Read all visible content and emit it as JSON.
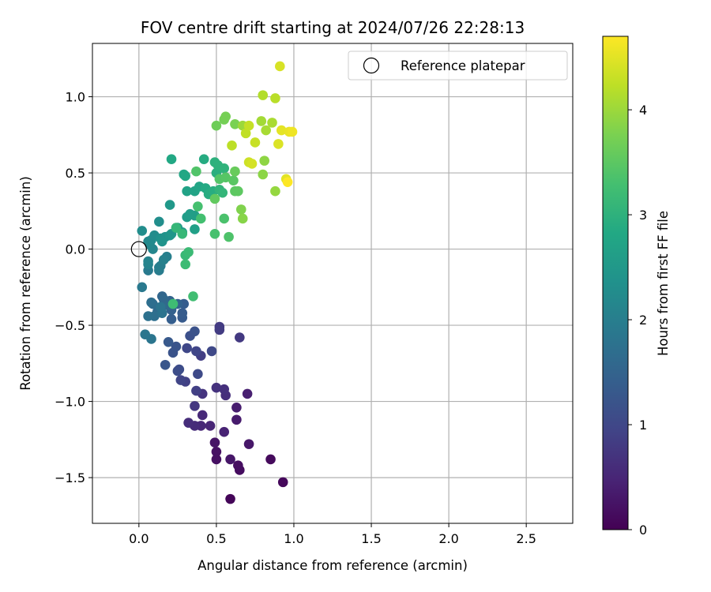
{
  "chart_data": {
    "type": "scatter",
    "title": "FOV centre drift starting at 2024/07/26 22:28:13",
    "xlabel": "Angular distance from reference (arcmin)",
    "ylabel": "Rotation from reference (arcmin)",
    "xlim": [
      -0.3,
      2.8
    ],
    "ylim": [
      -1.8,
      1.35
    ],
    "xticks": [
      0.0,
      0.5,
      1.0,
      1.5,
      2.0,
      2.5
    ],
    "xtick_labels": [
      "0.0",
      "0.5",
      "1.0",
      "1.5",
      "2.0",
      "2.5"
    ],
    "yticks": [
      -1.5,
      -1.0,
      -0.5,
      0.0,
      0.5,
      1.0
    ],
    "ytick_labels": [
      "−1.5",
      "−1.0",
      "−0.5",
      "0.0",
      "0.5",
      "1.0"
    ],
    "grid": true,
    "legend": {
      "placement": "upper-right",
      "entries": [
        "Reference platepar"
      ]
    },
    "reference_point": {
      "x": 0.0,
      "y": 0.0
    },
    "colorbar": {
      "label": "Hours from first FF file",
      "colormap": "viridis",
      "range": [
        0,
        4.7
      ],
      "ticks": [
        0,
        1,
        2,
        3,
        4
      ],
      "tick_labels": [
        "0",
        "1",
        "2",
        "3",
        "4"
      ]
    },
    "points": [
      {
        "x": 0.59,
        "y": -1.64,
        "t": 0.05
      },
      {
        "x": 0.93,
        "y": -1.53,
        "t": 0.1
      },
      {
        "x": 0.85,
        "y": -1.38,
        "t": 0.12
      },
      {
        "x": 0.65,
        "y": -1.45,
        "t": 0.15
      },
      {
        "x": 0.64,
        "y": -1.42,
        "t": 0.18
      },
      {
        "x": 0.5,
        "y": -1.38,
        "t": 0.2
      },
      {
        "x": 0.5,
        "y": -1.33,
        "t": 0.22
      },
      {
        "x": 0.49,
        "y": -1.27,
        "t": 0.25
      },
      {
        "x": 0.59,
        "y": -1.38,
        "t": 0.28
      },
      {
        "x": 0.71,
        "y": -1.28,
        "t": 0.3
      },
      {
        "x": 0.63,
        "y": -1.12,
        "t": 0.35
      },
      {
        "x": 0.63,
        "y": -1.04,
        "t": 0.38
      },
      {
        "x": 0.7,
        "y": -0.95,
        "t": 0.42
      },
      {
        "x": 0.55,
        "y": -1.2,
        "t": 0.45
      },
      {
        "x": 0.46,
        "y": -1.16,
        "t": 0.5
      },
      {
        "x": 0.4,
        "y": -1.16,
        "t": 0.52
      },
      {
        "x": 0.41,
        "y": -1.09,
        "t": 0.55
      },
      {
        "x": 0.36,
        "y": -1.16,
        "t": 0.58
      },
      {
        "x": 0.32,
        "y": -1.14,
        "t": 0.6
      },
      {
        "x": 0.56,
        "y": -0.96,
        "t": 0.62
      },
      {
        "x": 0.55,
        "y": -0.92,
        "t": 0.65
      },
      {
        "x": 0.5,
        "y": -0.91,
        "t": 0.68
      },
      {
        "x": 0.41,
        "y": -0.95,
        "t": 0.7
      },
      {
        "x": 0.36,
        "y": -1.03,
        "t": 0.75
      },
      {
        "x": 0.65,
        "y": -0.58,
        "t": 0.78
      },
      {
        "x": 0.52,
        "y": -0.51,
        "t": 0.8
      },
      {
        "x": 0.52,
        "y": -0.53,
        "t": 0.82
      },
      {
        "x": 0.4,
        "y": -0.7,
        "t": 0.85
      },
      {
        "x": 0.37,
        "y": -0.93,
        "t": 0.88
      },
      {
        "x": 0.3,
        "y": -0.87,
        "t": 0.9
      },
      {
        "x": 0.27,
        "y": -0.86,
        "t": 0.95
      },
      {
        "x": 0.37,
        "y": -0.67,
        "t": 0.98
      },
      {
        "x": 0.31,
        "y": -0.65,
        "t": 1.0
      },
      {
        "x": 0.47,
        "y": -0.67,
        "t": 1.02
      },
      {
        "x": 0.38,
        "y": -0.82,
        "t": 1.05
      },
      {
        "x": 0.26,
        "y": -0.79,
        "t": 1.08
      },
      {
        "x": 0.25,
        "y": -0.8,
        "t": 1.1
      },
      {
        "x": 0.33,
        "y": -0.57,
        "t": 1.15
      },
      {
        "x": 0.36,
        "y": -0.54,
        "t": 1.18
      },
      {
        "x": 0.22,
        "y": -0.68,
        "t": 1.2
      },
      {
        "x": 0.24,
        "y": -0.64,
        "t": 1.22
      },
      {
        "x": 0.17,
        "y": -0.76,
        "t": 1.25
      },
      {
        "x": 0.19,
        "y": -0.61,
        "t": 1.3
      },
      {
        "x": 0.28,
        "y": -0.45,
        "t": 1.32
      },
      {
        "x": 0.28,
        "y": -0.42,
        "t": 1.35
      },
      {
        "x": 0.29,
        "y": -0.36,
        "t": 1.38
      },
      {
        "x": 0.21,
        "y": -0.46,
        "t": 1.4
      },
      {
        "x": 0.21,
        "y": -0.4,
        "t": 1.45
      },
      {
        "x": 0.25,
        "y": -0.36,
        "t": 1.48
      },
      {
        "x": 0.2,
        "y": -0.34,
        "t": 1.5
      },
      {
        "x": 0.15,
        "y": -0.31,
        "t": 1.55
      },
      {
        "x": 0.16,
        "y": -0.33,
        "t": 1.58
      },
      {
        "x": 0.19,
        "y": -0.37,
        "t": 1.6
      },
      {
        "x": 0.12,
        "y": -0.41,
        "t": 1.62
      },
      {
        "x": 0.09,
        "y": -0.36,
        "t": 1.65
      },
      {
        "x": 0.08,
        "y": -0.35,
        "t": 1.7
      },
      {
        "x": 0.1,
        "y": -0.44,
        "t": 1.72
      },
      {
        "x": 0.06,
        "y": -0.44,
        "t": 1.75
      },
      {
        "x": 0.15,
        "y": -0.42,
        "t": 1.78
      },
      {
        "x": 0.14,
        "y": -0.38,
        "t": 1.8
      },
      {
        "x": 0.08,
        "y": -0.59,
        "t": 1.82
      },
      {
        "x": 0.04,
        "y": -0.56,
        "t": 1.85
      },
      {
        "x": 0.02,
        "y": -0.25,
        "t": 1.9
      },
      {
        "x": 0.06,
        "y": -0.14,
        "t": 1.92
      },
      {
        "x": 0.13,
        "y": -0.14,
        "t": 1.95
      },
      {
        "x": 0.14,
        "y": -0.11,
        "t": 1.98
      },
      {
        "x": 0.13,
        "y": -0.12,
        "t": 2.0
      },
      {
        "x": 0.18,
        "y": -0.05,
        "t": 2.02
      },
      {
        "x": 0.16,
        "y": -0.07,
        "t": 2.05
      },
      {
        "x": 0.06,
        "y": -0.1,
        "t": 2.08
      },
      {
        "x": 0.06,
        "y": -0.08,
        "t": 2.1
      },
      {
        "x": 0.09,
        "y": 0.0,
        "t": 2.15
      },
      {
        "x": 0.07,
        "y": 0.03,
        "t": 2.18
      },
      {
        "x": 0.06,
        "y": 0.05,
        "t": 2.2
      },
      {
        "x": 0.08,
        "y": 0.06,
        "t": 2.22
      },
      {
        "x": 0.1,
        "y": 0.09,
        "t": 2.25
      },
      {
        "x": 0.02,
        "y": 0.12,
        "t": 2.28
      },
      {
        "x": 0.13,
        "y": 0.18,
        "t": 2.3
      },
      {
        "x": 0.14,
        "y": 0.07,
        "t": 2.35
      },
      {
        "x": 0.17,
        "y": 0.08,
        "t": 2.38
      },
      {
        "x": 0.15,
        "y": 0.05,
        "t": 2.4
      },
      {
        "x": 0.2,
        "y": 0.09,
        "t": 2.42
      },
      {
        "x": 0.21,
        "y": 0.1,
        "t": 2.45
      },
      {
        "x": 0.2,
        "y": 0.29,
        "t": 2.5
      },
      {
        "x": 0.25,
        "y": 0.14,
        "t": 2.52
      },
      {
        "x": 0.28,
        "y": 0.11,
        "t": 2.55
      },
      {
        "x": 0.31,
        "y": 0.21,
        "t": 2.58
      },
      {
        "x": 0.33,
        "y": 0.23,
        "t": 2.6
      },
      {
        "x": 0.36,
        "y": 0.22,
        "t": 2.62
      },
      {
        "x": 0.36,
        "y": 0.13,
        "t": 2.65
      },
      {
        "x": 0.31,
        "y": 0.38,
        "t": 2.7
      },
      {
        "x": 0.36,
        "y": 0.38,
        "t": 2.72
      },
      {
        "x": 0.39,
        "y": 0.41,
        "t": 2.75
      },
      {
        "x": 0.29,
        "y": 0.49,
        "t": 2.78
      },
      {
        "x": 0.3,
        "y": 0.48,
        "t": 2.8
      },
      {
        "x": 0.21,
        "y": 0.59,
        "t": 2.82
      },
      {
        "x": 0.43,
        "y": 0.4,
        "t": 2.85
      },
      {
        "x": 0.42,
        "y": 0.59,
        "t": 2.88
      },
      {
        "x": 0.45,
        "y": 0.36,
        "t": 2.9
      },
      {
        "x": 0.48,
        "y": 0.38,
        "t": 2.92
      },
      {
        "x": 0.5,
        "y": 0.5,
        "t": 2.95
      },
      {
        "x": 0.49,
        "y": 0.57,
        "t": 2.98
      },
      {
        "x": 0.51,
        "y": 0.55,
        "t": 3.0
      },
      {
        "x": 0.55,
        "y": 0.53,
        "t": 3.02
      },
      {
        "x": 0.52,
        "y": 0.39,
        "t": 3.05
      },
      {
        "x": 0.54,
        "y": 0.37,
        "t": 3.08
      },
      {
        "x": 0.24,
        "y": 0.14,
        "t": 3.1
      },
      {
        "x": 0.28,
        "y": 0.1,
        "t": 3.12
      },
      {
        "x": 0.3,
        "y": -0.04,
        "t": 3.15
      },
      {
        "x": 0.32,
        "y": -0.02,
        "t": 3.18
      },
      {
        "x": 0.3,
        "y": -0.1,
        "t": 3.2
      },
      {
        "x": 0.22,
        "y": -0.36,
        "t": 3.22
      },
      {
        "x": 0.35,
        "y": -0.31,
        "t": 3.25
      },
      {
        "x": 0.4,
        "y": 0.2,
        "t": 3.28
      },
      {
        "x": 0.38,
        "y": 0.28,
        "t": 3.3
      },
      {
        "x": 0.49,
        "y": 0.1,
        "t": 3.32
      },
      {
        "x": 0.55,
        "y": 0.2,
        "t": 3.35
      },
      {
        "x": 0.58,
        "y": 0.08,
        "t": 3.38
      },
      {
        "x": 0.37,
        "y": 0.51,
        "t": 3.4
      },
      {
        "x": 0.52,
        "y": 0.46,
        "t": 3.42
      },
      {
        "x": 0.56,
        "y": 0.47,
        "t": 3.45
      },
      {
        "x": 0.61,
        "y": 0.45,
        "t": 3.48
      },
      {
        "x": 0.62,
        "y": 0.38,
        "t": 3.5
      },
      {
        "x": 0.64,
        "y": 0.38,
        "t": 3.52
      },
      {
        "x": 0.49,
        "y": 0.33,
        "t": 3.55
      },
      {
        "x": 0.62,
        "y": 0.51,
        "t": 3.6
      },
      {
        "x": 0.5,
        "y": 0.81,
        "t": 3.65
      },
      {
        "x": 0.55,
        "y": 0.85,
        "t": 3.7
      },
      {
        "x": 0.56,
        "y": 0.87,
        "t": 3.72
      },
      {
        "x": 0.62,
        "y": 0.82,
        "t": 3.75
      },
      {
        "x": 0.66,
        "y": 0.26,
        "t": 3.8
      },
      {
        "x": 0.67,
        "y": 0.2,
        "t": 3.85
      },
      {
        "x": 0.8,
        "y": 0.49,
        "t": 3.88
      },
      {
        "x": 0.81,
        "y": 0.58,
        "t": 3.9
      },
      {
        "x": 0.88,
        "y": 0.38,
        "t": 3.95
      },
      {
        "x": 0.67,
        "y": 0.81,
        "t": 4.0
      },
      {
        "x": 0.79,
        "y": 0.84,
        "t": 4.05
      },
      {
        "x": 0.82,
        "y": 0.78,
        "t": 4.08
      },
      {
        "x": 0.86,
        "y": 0.83,
        "t": 4.1
      },
      {
        "x": 0.8,
        "y": 1.01,
        "t": 4.15
      },
      {
        "x": 0.88,
        "y": 0.99,
        "t": 4.2
      },
      {
        "x": 0.6,
        "y": 0.68,
        "t": 4.22
      },
      {
        "x": 0.69,
        "y": 0.76,
        "t": 4.25
      },
      {
        "x": 0.71,
        "y": 0.81,
        "t": 4.28
      },
      {
        "x": 0.75,
        "y": 0.7,
        "t": 4.3
      },
      {
        "x": 0.71,
        "y": 0.57,
        "t": 4.35
      },
      {
        "x": 0.73,
        "y": 0.56,
        "t": 4.4
      },
      {
        "x": 0.91,
        "y": 1.2,
        "t": 4.42
      },
      {
        "x": 0.9,
        "y": 0.69,
        "t": 4.45
      },
      {
        "x": 0.95,
        "y": 0.46,
        "t": 4.5
      },
      {
        "x": 0.92,
        "y": 0.78,
        "t": 4.52
      },
      {
        "x": 0.97,
        "y": 0.77,
        "t": 4.55
      },
      {
        "x": 0.99,
        "y": 0.77,
        "t": 4.6
      },
      {
        "x": 0.96,
        "y": 0.44,
        "t": 4.7
      }
    ]
  }
}
